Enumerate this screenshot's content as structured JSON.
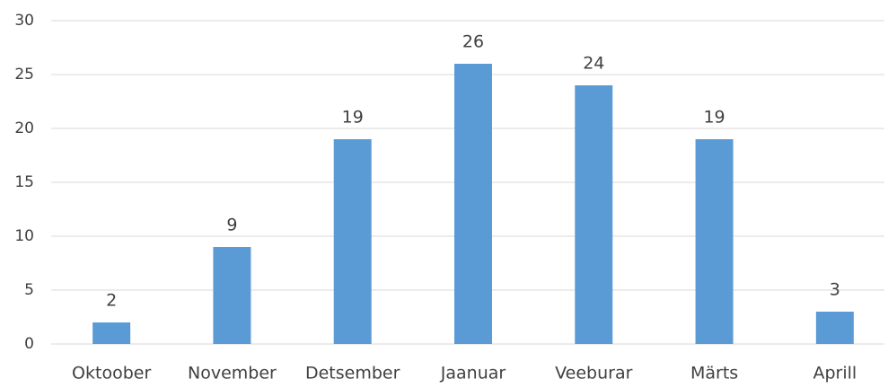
{
  "chart_data": {
    "type": "bar",
    "categories": [
      "Oktoober",
      "November",
      "Detsember",
      "Jaanuar",
      "Veeburar",
      "Märts",
      "Aprill"
    ],
    "values": [
      2,
      9,
      19,
      26,
      24,
      19,
      3
    ],
    "color": "#5b9bd5",
    "ylim": [
      0,
      30
    ],
    "yticks": [
      0,
      5,
      10,
      15,
      20,
      25,
      30
    ],
    "grid": true
  }
}
